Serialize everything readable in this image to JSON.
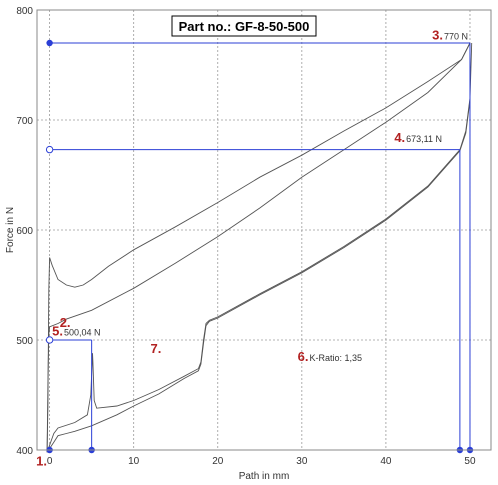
{
  "chart_data": {
    "type": "line",
    "title": "Part no.: GF-8-50-500",
    "xlabel": "Path in mm",
    "ylabel": "Force in N",
    "xlim": [
      -1.5,
      52.5
    ],
    "ylim": [
      400,
      800
    ],
    "xticks": [
      "0",
      "10",
      "20",
      "30",
      "40",
      "50"
    ],
    "yticks": [
      "400",
      "500",
      "600",
      "700",
      "800"
    ],
    "grid": true,
    "colors": {
      "curve": "#555555",
      "guide": "#2b3fd6",
      "number": "#b22222"
    },
    "series": [
      {
        "points": [
          [
            -0.3,
            398
          ],
          [
            -0.2,
            440
          ],
          [
            -0.15,
            500
          ],
          [
            -0.1,
            545
          ],
          [
            0,
            575
          ],
          [
            0.3,
            568
          ],
          [
            1,
            555
          ],
          [
            2,
            550
          ],
          [
            3,
            548
          ],
          [
            4,
            550
          ],
          [
            5,
            555
          ],
          [
            7,
            567
          ],
          [
            10,
            582
          ],
          [
            15,
            603
          ],
          [
            20,
            625
          ],
          [
            25,
            648
          ],
          [
            30,
            668
          ],
          [
            35,
            690
          ],
          [
            40,
            711
          ],
          [
            45,
            735
          ],
          [
            49,
            755
          ],
          [
            50,
            770
          ]
        ]
      },
      {
        "points": [
          [
            -0.3,
            398
          ],
          [
            -0.2,
            460
          ],
          [
            -0.1,
            505
          ],
          [
            0,
            512
          ],
          [
            1,
            515
          ],
          [
            2,
            519
          ],
          [
            5,
            527
          ],
          [
            10,
            547
          ],
          [
            15,
            570
          ],
          [
            20,
            594
          ],
          [
            25,
            620
          ],
          [
            30,
            648
          ],
          [
            35,
            673
          ],
          [
            40,
            698
          ],
          [
            45,
            725
          ],
          [
            49,
            755
          ],
          [
            50,
            770
          ]
        ]
      },
      {
        "points": [
          [
            -0.3,
            398
          ],
          [
            0.5,
            415
          ],
          [
            1,
            420
          ],
          [
            3,
            425
          ],
          [
            4.5,
            432
          ],
          [
            4.9,
            450
          ],
          [
            5.1,
            488
          ],
          [
            5.15,
            480
          ],
          [
            5.3,
            445
          ],
          [
            5.6,
            438
          ],
          [
            8,
            440
          ],
          [
            10,
            445
          ],
          [
            13,
            455
          ],
          [
            16,
            467
          ],
          [
            17.7,
            474
          ],
          [
            18,
            480
          ],
          [
            18.3,
            500
          ],
          [
            18.6,
            515
          ],
          [
            19,
            518
          ],
          [
            20,
            521
          ],
          [
            25,
            542
          ],
          [
            30,
            562
          ],
          [
            35,
            585
          ],
          [
            40,
            610
          ],
          [
            45,
            640
          ],
          [
            48.8,
            673
          ],
          [
            49.5,
            690
          ],
          [
            50,
            720
          ],
          [
            50.2,
            770
          ]
        ]
      },
      {
        "points": [
          [
            -0.3,
            398
          ],
          [
            0.5,
            407
          ],
          [
            1,
            413
          ],
          [
            2,
            415
          ],
          [
            3,
            417
          ],
          [
            5,
            422
          ],
          [
            8,
            432
          ],
          [
            10,
            440
          ],
          [
            13,
            451
          ],
          [
            16,
            465
          ],
          [
            17.7,
            472
          ],
          [
            18,
            478
          ],
          [
            18.3,
            497
          ],
          [
            18.6,
            513
          ],
          [
            19,
            517
          ],
          [
            20,
            520
          ],
          [
            25,
            541
          ],
          [
            30,
            561
          ],
          [
            35,
            584
          ],
          [
            40,
            609
          ],
          [
            45,
            639
          ],
          [
            48.8,
            672
          ],
          [
            49.5,
            688
          ],
          [
            50,
            718
          ]
        ]
      }
    ],
    "guides": [
      {
        "x": 50,
        "y": 770
      },
      {
        "x": 48.8,
        "y": 673.11
      },
      {
        "x": 5,
        "y": 500.04
      }
    ],
    "annotations": [
      {
        "number": "1.",
        "x": -1.6,
        "y": 386
      },
      {
        "number": "2.",
        "x": 1.2,
        "y": 512,
        "text": ""
      },
      {
        "number": "3.",
        "x": 45.5,
        "y": 773,
        "text": "770 N"
      },
      {
        "number": "4.",
        "x": 41,
        "y": 680,
        "text": "673,11 N"
      },
      {
        "number": "5.",
        "x": 0.3,
        "y": 504,
        "text": "500,04 N"
      },
      {
        "number": "6.",
        "x": 29.5,
        "y": 481,
        "text": "K-Ratio: 1,35"
      },
      {
        "number": "7.",
        "x": 12,
        "y": 488,
        "text": ""
      }
    ]
  }
}
